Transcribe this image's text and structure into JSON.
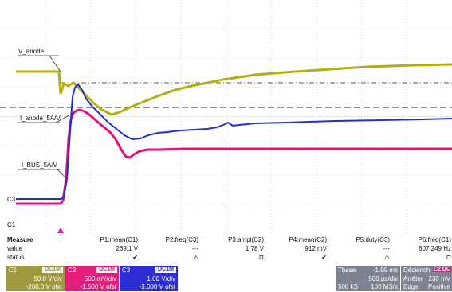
{
  "colors": {
    "c1": "#b4ae0f",
    "c2": "#e8107a",
    "c3": "#1f2fe0",
    "grid": "#b8b8b8",
    "panel": "#7e8391",
    "c1_panel": "#9f9a3e",
    "c2_panel": "#e21d7b",
    "c3_panel": "#2c2ed4"
  },
  "trace_labels": {
    "v_anode": "V_anode",
    "i_anode": "I_anode_5A/V",
    "i_bus": "I_BUS_5A/V"
  },
  "channel_markers": {
    "c1": "C1",
    "c3": "C3"
  },
  "measure": {
    "title": "Measure",
    "row_value": "value",
    "row_status": "status",
    "columns": [
      {
        "name": "P1:mean(C1)",
        "value": "269.1 V",
        "status": "✔"
      },
      {
        "name": "P2:freq(C3)",
        "value": "---",
        "status": "⚠"
      },
      {
        "name": "P3:ampl(C2)",
        "value": "1.78 V",
        "status": "⊓"
      },
      {
        "name": "P4:mean(C2)",
        "value": "912 mV",
        "status": "✔"
      },
      {
        "name": "P5:duty(C3)",
        "value": "---",
        "status": "⚠"
      },
      {
        "name": "P6:freq(C1)",
        "value": "807.249 Hz",
        "status": "⊓"
      }
    ]
  },
  "channels": [
    {
      "id": "C1",
      "tag": "DC1M",
      "vdiv": "50.0 V/div",
      "ofst": "-200.0 V ofst"
    },
    {
      "id": "C2",
      "tag": "DC1M",
      "vdiv": "500 mV/div",
      "ofst": "-1.500 V ofst"
    },
    {
      "id": "C3",
      "tag": "DC1M",
      "vdiv": "1.00 V/div",
      "ofst": "-3.000 V ofst"
    }
  ],
  "timebase": {
    "label": "Tbase",
    "delay": "-1.99 ms",
    "tdiv": "500 µs/div",
    "samples": "500 kS",
    "rate": "100 MS/s"
  },
  "trigger": {
    "label": "Déclench",
    "source_tag": "C2 DC",
    "mode": "Arrêter",
    "level": "230 mV",
    "type": "Edge",
    "slope": "Positive"
  }
}
